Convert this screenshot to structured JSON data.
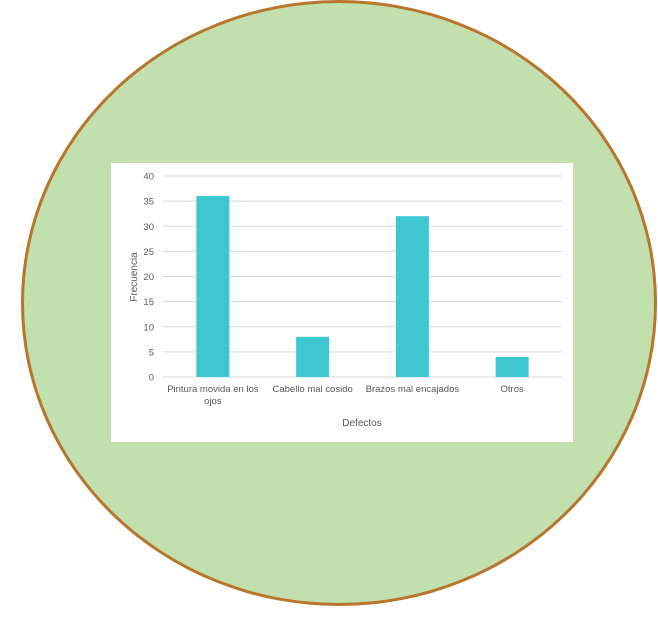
{
  "colors": {
    "page_background": "#ffffff",
    "circle_fill": "#c2e0ae",
    "circle_border": "#b8762a",
    "bar": "#3ec7d1",
    "gridline": "#d9d9d9",
    "text": "#595959"
  },
  "chart_data": {
    "type": "bar",
    "categories": [
      [
        "Pintura movida en los",
        "ojos"
      ],
      [
        "Cabello mal cosido"
      ],
      [
        "Brazos mal encajados"
      ],
      [
        "Otros"
      ]
    ],
    "values": [
      36,
      8,
      32,
      4
    ],
    "title": "",
    "xlabel": "Defectos",
    "ylabel": "Frecuencia",
    "ylim": [
      0,
      40
    ],
    "yticks": [
      "0",
      "5",
      "10",
      "15",
      "20",
      "25",
      "30",
      "35",
      "40"
    ],
    "grid": true,
    "legend": "none"
  }
}
